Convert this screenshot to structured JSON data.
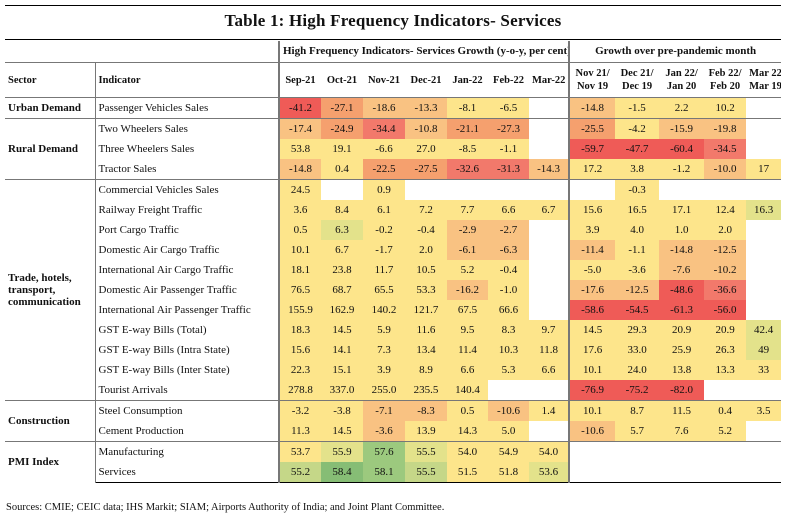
{
  "title": "Table 1: High Frequency Indicators- Services",
  "group_headers": {
    "growth": "High Frequency Indicators- Services Growth (y-o-y, per cent)",
    "pre_pandemic": "Growth over pre-pandemic month"
  },
  "column_headers": {
    "sector": "Sector",
    "indicator": "Indicator",
    "months": [
      "Sep-21",
      "Oct-21",
      "Nov-21",
      "Dec-21",
      "Jan-22",
      "Feb-22",
      "Mar-22"
    ],
    "pre": [
      {
        "line1": "Nov 21/",
        "line2": "Nov 19"
      },
      {
        "line1": "Dec 21/",
        "line2": "Dec 19"
      },
      {
        "line1": "Jan 22/",
        "line2": "Jan 20"
      },
      {
        "line1": "Feb 22/",
        "line2": "Feb 20"
      },
      {
        "line1": "Mar 22/",
        "line2": "Mar 19"
      }
    ]
  },
  "palette": {
    "red": "#ef5b57",
    "red2": "#f2796b",
    "orange": "#f5a06e",
    "lorange": "#f9c282",
    "yellow": "#fde58b",
    "lyellow": "#fdea8e",
    "lgreen": "#e3e28b",
    "green": "#c5d788",
    "dgreen": "#9cc97e",
    "dkgreen": "#86bd75",
    "white": "#ffffff"
  },
  "sectors": [
    {
      "name": "Urban Demand",
      "rows": [
        {
          "indicator": "Passenger Vehicles Sales",
          "values": [
            "-41.2",
            "-27.1",
            "-18.6",
            "-13.3",
            "-8.1",
            "-6.5",
            ""
          ],
          "pre": [
            "-14.8",
            "-1.5",
            "2.2",
            "10.2",
            ""
          ],
          "colors": [
            "red",
            "orange",
            "lorange",
            "lorange",
            "yellow",
            "yellow",
            "white"
          ],
          "pre_colors": [
            "lorange",
            "yellow",
            "yellow",
            "yellow",
            "white"
          ]
        }
      ]
    },
    {
      "name": "Rural Demand",
      "rows": [
        {
          "indicator": "Two Wheelers Sales",
          "values": [
            "-17.4",
            "-24.9",
            "-34.4",
            "-10.8",
            "-21.1",
            "-27.3",
            ""
          ],
          "pre": [
            "-25.5",
            "-4.2",
            "-15.9",
            "-19.8",
            ""
          ],
          "colors": [
            "lorange",
            "orange",
            "red2",
            "lorange",
            "orange",
            "orange",
            "white"
          ],
          "pre_colors": [
            "orange",
            "yellow",
            "lorange",
            "lorange",
            "white"
          ]
        },
        {
          "indicator": "Three Wheelers Sales",
          "values": [
            "53.8",
            "19.1",
            "-6.6",
            "27.0",
            "-8.5",
            "-1.1",
            ""
          ],
          "pre": [
            "-59.7",
            "-47.7",
            "-60.4",
            "-34.5",
            ""
          ],
          "colors": [
            "yellow",
            "yellow",
            "yellow",
            "yellow",
            "yellow",
            "yellow",
            "white"
          ],
          "pre_colors": [
            "red",
            "red",
            "red",
            "red2",
            "white"
          ]
        },
        {
          "indicator": "Tractor Sales",
          "values": [
            "-14.8",
            "0.4",
            "-22.5",
            "-27.5",
            "-32.6",
            "-31.3",
            "-14.3"
          ],
          "pre": [
            "17.2",
            "3.8",
            "-1.2",
            "-10.0",
            "17"
          ],
          "colors": [
            "lorange",
            "yellow",
            "orange",
            "orange",
            "red2",
            "red2",
            "lorange"
          ],
          "pre_colors": [
            "yellow",
            "yellow",
            "yellow",
            "lorange",
            "yellow"
          ]
        }
      ]
    },
    {
      "name": "Trade, hotels, transport, communication",
      "rows": [
        {
          "indicator": "Commercial Vehicles Sales",
          "values": [
            "24.5",
            "",
            "0.9",
            "",
            "",
            "",
            ""
          ],
          "pre": [
            "",
            "-0.3",
            "",
            "",
            ""
          ],
          "colors": [
            "yellow",
            "white",
            "yellow",
            "white",
            "white",
            "white",
            "white"
          ],
          "pre_colors": [
            "white",
            "yellow",
            "white",
            "white",
            "white"
          ]
        },
        {
          "indicator": "Railway Freight Traffic",
          "values": [
            "3.6",
            "8.4",
            "6.1",
            "7.2",
            "7.7",
            "6.6",
            "6.7"
          ],
          "pre": [
            "15.6",
            "16.5",
            "17.1",
            "12.4",
            "16.3"
          ],
          "colors": [
            "yellow",
            "yellow",
            "yellow",
            "yellow",
            "yellow",
            "yellow",
            "yellow"
          ],
          "pre_colors": [
            "yellow",
            "yellow",
            "yellow",
            "yellow",
            "lgreen"
          ]
        },
        {
          "indicator": "Port Cargo Traffic",
          "values": [
            "0.5",
            "6.3",
            "-0.2",
            "-0.4",
            "-2.9",
            "-2.7",
            ""
          ],
          "pre": [
            "3.9",
            "4.0",
            "1.0",
            "2.0",
            ""
          ],
          "colors": [
            "yellow",
            "lgreen",
            "yellow",
            "yellow",
            "lorange",
            "lorange",
            "white"
          ],
          "pre_colors": [
            "yellow",
            "yellow",
            "yellow",
            "yellow",
            "white"
          ]
        },
        {
          "indicator": "Domestic Air Cargo Traffic",
          "values": [
            "10.1",
            "6.7",
            "-1.7",
            "2.0",
            "-6.1",
            "-6.3",
            ""
          ],
          "pre": [
            "-11.4",
            "-1.1",
            "-14.8",
            "-12.5",
            ""
          ],
          "colors": [
            "yellow",
            "yellow",
            "yellow",
            "yellow",
            "lorange",
            "lorange",
            "white"
          ],
          "pre_colors": [
            "lorange",
            "yellow",
            "lorange",
            "lorange",
            "white"
          ]
        },
        {
          "indicator": "International Air Cargo Traffic",
          "values": [
            "18.1",
            "23.8",
            "11.7",
            "10.5",
            "5.2",
            "-0.4",
            ""
          ],
          "pre": [
            "-5.0",
            "-3.6",
            "-7.6",
            "-10.2",
            ""
          ],
          "colors": [
            "yellow",
            "yellow",
            "yellow",
            "yellow",
            "yellow",
            "yellow",
            "white"
          ],
          "pre_colors": [
            "yellow",
            "yellow",
            "lorange",
            "lorange",
            "white"
          ]
        },
        {
          "indicator": "Domestic Air Passenger Traffic",
          "values": [
            "76.5",
            "68.7",
            "65.5",
            "53.3",
            "-16.2",
            "-1.0",
            ""
          ],
          "pre": [
            "-17.6",
            "-12.5",
            "-48.6",
            "-36.6",
            ""
          ],
          "colors": [
            "yellow",
            "yellow",
            "yellow",
            "yellow",
            "lorange",
            "yellow",
            "white"
          ],
          "pre_colors": [
            "lorange",
            "lorange",
            "red",
            "red2",
            "white"
          ]
        },
        {
          "indicator": "International Air Passenger Traffic",
          "values": [
            "155.9",
            "162.9",
            "140.2",
            "121.7",
            "67.5",
            "66.6",
            ""
          ],
          "pre": [
            "-58.6",
            "-54.5",
            "-61.3",
            "-56.0",
            ""
          ],
          "colors": [
            "yellow",
            "yellow",
            "yellow",
            "yellow",
            "yellow",
            "yellow",
            "white"
          ],
          "pre_colors": [
            "red",
            "red",
            "red",
            "red",
            "white"
          ]
        },
        {
          "indicator": "GST E-way Bills (Total)",
          "values": [
            "18.3",
            "14.5",
            "5.9",
            "11.6",
            "9.5",
            "8.3",
            "9.7"
          ],
          "pre": [
            "14.5",
            "29.3",
            "20.9",
            "20.9",
            "42.4"
          ],
          "colors": [
            "yellow",
            "yellow",
            "yellow",
            "yellow",
            "yellow",
            "yellow",
            "yellow"
          ],
          "pre_colors": [
            "yellow",
            "yellow",
            "yellow",
            "yellow",
            "lgreen"
          ]
        },
        {
          "indicator": "GST E-way Bills (Intra State)",
          "values": [
            "15.6",
            "14.1",
            "7.3",
            "13.4",
            "11.4",
            "10.3",
            "11.8"
          ],
          "pre": [
            "17.6",
            "33.0",
            "25.9",
            "26.3",
            "49"
          ],
          "colors": [
            "yellow",
            "yellow",
            "yellow",
            "yellow",
            "yellow",
            "yellow",
            "yellow"
          ],
          "pre_colors": [
            "yellow",
            "yellow",
            "yellow",
            "yellow",
            "lgreen"
          ]
        },
        {
          "indicator": "GST E-way Bills (Inter State)",
          "values": [
            "22.3",
            "15.1",
            "3.9",
            "8.9",
            "6.6",
            "5.3",
            "6.6"
          ],
          "pre": [
            "10.1",
            "24.0",
            "13.8",
            "13.3",
            "33"
          ],
          "colors": [
            "yellow",
            "yellow",
            "yellow",
            "yellow",
            "yellow",
            "yellow",
            "yellow"
          ],
          "pre_colors": [
            "yellow",
            "yellow",
            "yellow",
            "yellow",
            "yellow"
          ]
        },
        {
          "indicator": "Tourist Arrivals",
          "values": [
            "278.8",
            "337.0",
            "255.0",
            "235.5",
            "140.4",
            "",
            ""
          ],
          "pre": [
            "-76.9",
            "-75.2",
            "-82.0",
            "",
            ""
          ],
          "colors": [
            "yellow",
            "yellow",
            "yellow",
            "yellow",
            "yellow",
            "white",
            "white"
          ],
          "pre_colors": [
            "red",
            "red",
            "red",
            "white",
            "white"
          ]
        }
      ]
    },
    {
      "name": "Construction",
      "rows": [
        {
          "indicator": "Steel Consumption",
          "values": [
            "-3.2",
            "-3.8",
            "-7.1",
            "-8.3",
            "0.5",
            "-10.6",
            "1.4"
          ],
          "pre": [
            "10.1",
            "8.7",
            "11.5",
            "0.4",
            "3.5"
          ],
          "colors": [
            "yellow",
            "yellow",
            "lorange",
            "lorange",
            "yellow",
            "lorange",
            "yellow"
          ],
          "pre_colors": [
            "yellow",
            "yellow",
            "yellow",
            "yellow",
            "yellow"
          ]
        },
        {
          "indicator": "Cement Production",
          "values": [
            "11.3",
            "14.5",
            "-3.6",
            "13.9",
            "14.3",
            "5.0",
            ""
          ],
          "pre": [
            "-10.6",
            "5.7",
            "7.6",
            "5.2",
            ""
          ],
          "colors": [
            "yellow",
            "yellow",
            "lorange",
            "yellow",
            "yellow",
            "yellow",
            "white"
          ],
          "pre_colors": [
            "lorange",
            "yellow",
            "yellow",
            "yellow",
            "white"
          ]
        }
      ]
    },
    {
      "name": "PMI Index",
      "rows": [
        {
          "indicator": "Manufacturing",
          "values": [
            "53.7",
            "55.9",
            "57.6",
            "55.5",
            "54.0",
            "54.9",
            "54.0"
          ],
          "pre": [
            "",
            "",
            "",
            "",
            ""
          ],
          "colors": [
            "yellow",
            "lgreen",
            "dgreen",
            "lgreen",
            "yellow",
            "yellow",
            "yellow"
          ],
          "pre_colors": [
            "white",
            "white",
            "white",
            "white",
            "white"
          ]
        },
        {
          "indicator": "Services",
          "values": [
            "55.2",
            "58.4",
            "58.1",
            "55.5",
            "51.5",
            "51.8",
            "53.6"
          ],
          "pre": [
            "",
            "",
            "",
            "",
            ""
          ],
          "colors": [
            "green",
            "dkgreen",
            "dgreen",
            "green",
            "yellow",
            "yellow",
            "lgreen"
          ],
          "pre_colors": [
            "white",
            "white",
            "white",
            "white",
            "white"
          ]
        }
      ]
    }
  ],
  "sources": "Sources: CMIE; CEIC data; IHS Markit; SIAM; Airports Authority of India; and Joint Plant Committee."
}
